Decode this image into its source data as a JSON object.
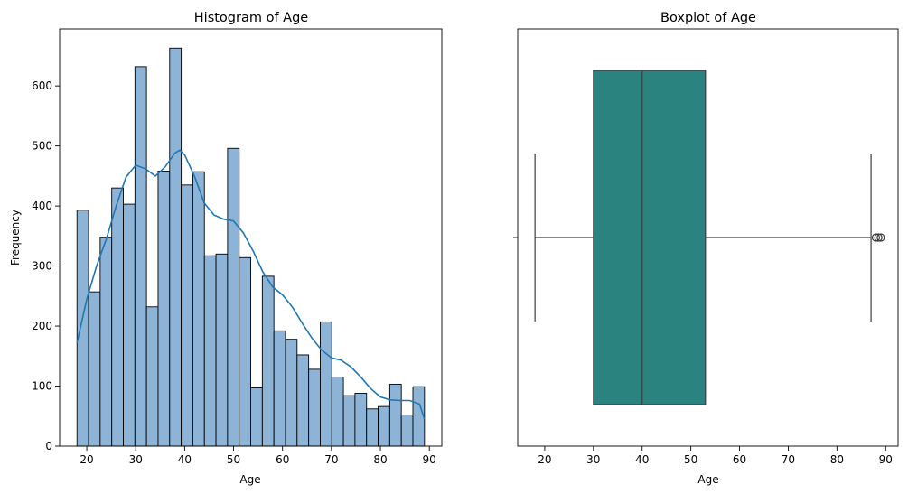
{
  "chart_data": [
    {
      "type": "bar",
      "subtype": "histogram-with-kde",
      "title": "Histogram of Age",
      "xlabel": "Age",
      "ylabel": "Frequency",
      "xlim": [
        14.45,
        92.55
      ],
      "ylim": [
        0,
        695
      ],
      "xticks": [
        20,
        30,
        40,
        50,
        60,
        70,
        80,
        90
      ],
      "yticks": [
        0,
        100,
        200,
        300,
        400,
        500,
        600
      ],
      "bin_start": 18,
      "bin_width": 2.367,
      "values": [
        393,
        257,
        348,
        430,
        403,
        632,
        232,
        458,
        663,
        435,
        457,
        317,
        320,
        496,
        314,
        97,
        283,
        192,
        178,
        152,
        128,
        207,
        115,
        84,
        88,
        62,
        66,
        103,
        52,
        99
      ],
      "bar_color": "#8db4d6",
      "bar_edge_color": "#000000",
      "kde": {
        "color": "#1f77b4",
        "x": [
          18,
          20,
          22,
          24,
          26,
          28,
          30,
          32,
          34,
          36,
          38,
          39,
          40,
          42,
          44,
          46,
          48,
          50,
          52,
          54,
          56,
          58,
          60,
          62,
          64,
          66,
          68,
          70,
          72,
          74,
          76,
          78,
          80,
          82,
          84,
          86,
          88,
          89
        ],
        "y": [
          172,
          245,
          300,
          345,
          400,
          448,
          468,
          462,
          450,
          465,
          488,
          493,
          485,
          450,
          405,
          385,
          378,
          375,
          355,
          325,
          290,
          265,
          252,
          232,
          205,
          180,
          160,
          147,
          143,
          132,
          115,
          96,
          82,
          77,
          76,
          76,
          70,
          45
        ]
      }
    },
    {
      "type": "boxplot",
      "title": "Boxplot of Age",
      "xlabel": "Age",
      "xlim": [
        14.45,
        92.55
      ],
      "xticks": [
        20,
        30,
        40,
        50,
        60,
        70,
        80,
        90
      ],
      "whisker_low": 18,
      "q1": 30,
      "median": 40,
      "q3": 53,
      "whisker_high": 87,
      "outliers": [
        88,
        88.5,
        89
      ],
      "box_color": "#2a837f",
      "line_color": "#3d3d3d"
    }
  ]
}
